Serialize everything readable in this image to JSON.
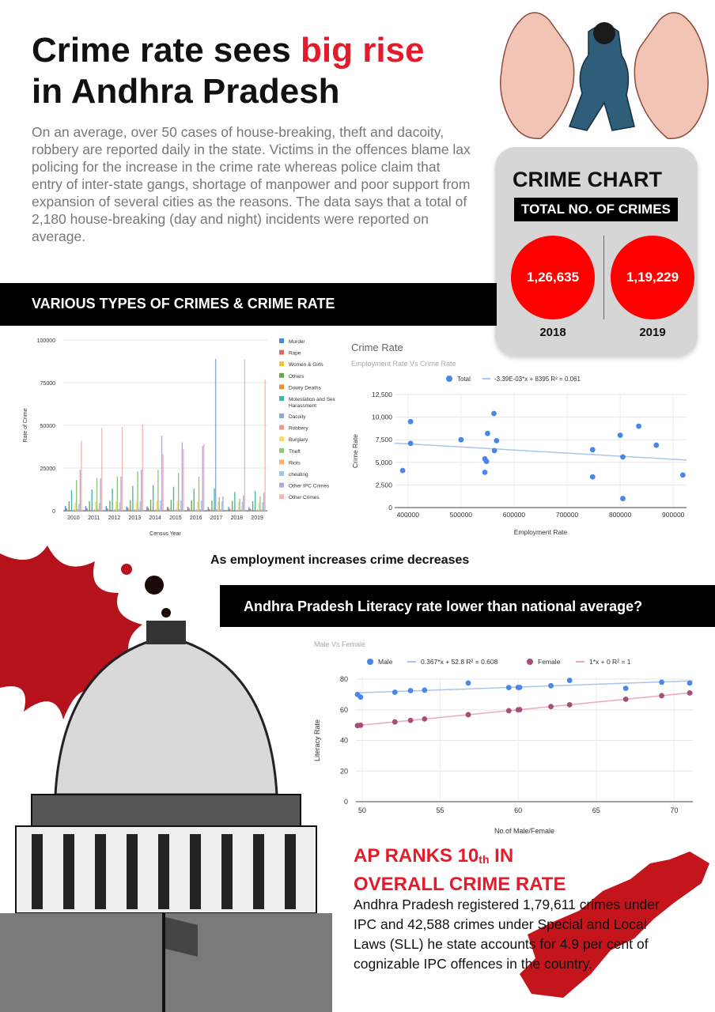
{
  "header": {
    "title_part1": "Crime rate sees ",
    "title_highlight": "big rise",
    "title_line2": "in Andhra Pradesh",
    "intro": "On an average, over 50 cases of house-breaking, theft and dacoity, robbery are reported daily in the state. Victims in the offences blame lax policing for the increase in the crime rate whereas police claim that entry of inter-state gangs, shortage of manpower and poor support from expansion of several cities as the reasons. The data says that a total of 2,180 house-breaking (day and night) incidents were reported on average."
  },
  "crime_chart": {
    "title": "CRIME CHART",
    "subtitle": "TOTAL NO. OF CRIMES",
    "value_2018": "1,26,635",
    "value_2019": "1,19,229",
    "year_2018": "2018",
    "year_2019": "2019"
  },
  "banners": {
    "crimes_banner": "VARIOUS TYPES OF CRIMES & CRIME RATE",
    "literacy_banner": "Andhra Pradesh Literacy rate lower than national average?"
  },
  "caption": "As employment increases crime decreases",
  "rank": {
    "title_line1_a": "AP RANKS 10",
    "title_sup": "th",
    "title_line1_b": " IN",
    "title_line2": "OVERALL CRIME RATE",
    "body": "Andhra Pradesh registered 1,79,611 crimes under IPC and 42,588 crimes under Special and Local Laws (SLL) he state accounts for 4.9 per cent of cognizable IPC offences in the country."
  },
  "colors": {
    "accent_red": "#e31b2b",
    "circle_red": "#ff0000",
    "card_gray": "#d6d6d6"
  },
  "chart_data": [
    {
      "type": "bar",
      "title": "",
      "xlabel": "Census Year",
      "ylabel": "Rate of Crime",
      "ylim": [
        0,
        100000
      ],
      "yticks": [
        0,
        25000,
        50000,
        75000,
        100000
      ],
      "ytick_labels": [
        "0",
        "25000",
        "50000",
        "75000",
        "100000"
      ],
      "categories": [
        "2010",
        "2011",
        "2012",
        "2013",
        "2014",
        "2015",
        "2016",
        "2017",
        "2018",
        "2019"
      ],
      "legend_position": "right",
      "series": [
        {
          "name": "Murder",
          "color": "#4a86e8",
          "values": [
            2800,
            2700,
            2700,
            2500,
            2500,
            2300,
            2300,
            2200,
            2200,
            2100
          ]
        },
        {
          "name": "Rape",
          "color": "#e06666",
          "values": [
            1400,
            1500,
            1500,
            1800,
            1800,
            1500,
            1600,
            1000,
            1100,
            1100
          ]
        },
        {
          "name": "Women & Girls",
          "color": "#f1c232",
          "values": [
            600,
            650,
            700,
            900,
            900,
            700,
            700,
            600,
            600,
            700
          ]
        },
        {
          "name": "Others",
          "color": "#6aa84f",
          "values": [
            5500,
            5600,
            5800,
            6200,
            6500,
            6300,
            6100,
            6000,
            5700,
            5500
          ]
        },
        {
          "name": "Dowry Deaths",
          "color": "#e69138",
          "values": [
            500,
            500,
            500,
            500,
            500,
            400,
            400,
            350,
            350,
            300
          ]
        },
        {
          "name": "Molestation and Sex Harassment",
          "color": "#45b5aa",
          "values": [
            12000,
            12500,
            13000,
            14500,
            15000,
            14000,
            13000,
            13000,
            11000,
            11500
          ]
        },
        {
          "name": "Dacoity",
          "color": "#8eaadb",
          "values": [
            300,
            300,
            300,
            350,
            350,
            300,
            300,
            89000,
            300,
            300
          ]
        },
        {
          "name": "Robbery",
          "color": "#ea9999",
          "values": [
            900,
            900,
            900,
            950,
            900,
            850,
            800,
            750,
            700,
            700
          ]
        },
        {
          "name": "Burglary",
          "color": "#ffd966",
          "values": [
            5000,
            5200,
            5300,
            5800,
            6000,
            5700,
            5500,
            5300,
            5000,
            4800
          ]
        },
        {
          "name": "Theft",
          "color": "#93c47d",
          "values": [
            18000,
            19000,
            20000,
            23000,
            24000,
            22000,
            20000,
            8000,
            7000,
            8500
          ]
        },
        {
          "name": "Riots",
          "color": "#f6b26b",
          "values": [
            1200,
            1300,
            1200,
            1200,
            1100,
            1000,
            900,
            900,
            800,
            800
          ]
        },
        {
          "name": "cheating",
          "color": "#9fc5e8",
          "values": [
            4000,
            4500,
            5000,
            5500,
            6000,
            6000,
            5800,
            5500,
            5200,
            5000
          ]
        },
        {
          "name": "Other IPC Crimes",
          "color": "#b4a7d6",
          "values": [
            24000,
            19000,
            20000,
            24000,
            44000,
            40000,
            38000,
            8500,
            9000,
            10500
          ]
        },
        {
          "name": "Other Crimes",
          "color": "#f4b6b6",
          "values": [
            41000,
            48500,
            49000,
            50500,
            33000,
            36000,
            39000,
            0,
            88500,
            77000
          ]
        }
      ]
    },
    {
      "type": "scatter",
      "title": "Crime Rate",
      "subtitle": "Employment Rate Vs Crime Rate",
      "xlabel": "Employment Rate",
      "ylabel": "Crime Rate",
      "xlim": [
        375000,
        925000
      ],
      "ylim": [
        0,
        12500
      ],
      "xticks": [
        400000,
        500000,
        600000,
        700000,
        800000,
        900000
      ],
      "xtick_labels": [
        "400000",
        "500000",
        "600000",
        "700000",
        "800000",
        "900000"
      ],
      "yticks": [
        0,
        2500,
        5000,
        7500,
        10000,
        12500
      ],
      "ytick_labels": [
        "0",
        "2,500",
        "5,000",
        "7,500",
        "10,000",
        "12,500"
      ],
      "legend": [
        "Total",
        "-3.39E-03*x + 8395 R² = 0.061"
      ],
      "series": [
        {
          "name": "Total",
          "color": "#4a86e8",
          "points": [
            [
              390000,
              4100
            ],
            [
              405000,
              9500
            ],
            [
              405000,
              7100
            ],
            [
              500000,
              7500
            ],
            [
              545000,
              3900
            ],
            [
              545000,
              5400
            ],
            [
              548000,
              5100
            ],
            [
              550000,
              8200
            ],
            [
              562000,
              10400
            ],
            [
              563000,
              6300
            ],
            [
              567000,
              7400
            ],
            [
              748000,
              6400
            ],
            [
              748000,
              3400
            ],
            [
              800000,
              8000
            ],
            [
              805000,
              5600
            ],
            [
              805000,
              1000
            ],
            [
              835000,
              9000
            ],
            [
              868000,
              6900
            ],
            [
              918000,
              3600
            ]
          ]
        }
      ],
      "trendline": {
        "slope": -0.00339,
        "intercept": 8395,
        "color": "#a9c5ee"
      }
    },
    {
      "type": "scatter",
      "title": "",
      "subtitle": "Male Vs Female",
      "xlabel": "No.of Male/Female",
      "ylabel": "Literacy Rate",
      "xlim": [
        49.6,
        71.2
      ],
      "ylim": [
        0,
        80
      ],
      "xticks": [
        50,
        55,
        60,
        65,
        70
      ],
      "yticks": [
        0,
        20,
        40,
        60,
        80
      ],
      "legend": [
        "Male",
        "0.367*x + 52.8 R² = 0.608",
        "Female",
        "1*x + 0 R² = 1"
      ],
      "series": [
        {
          "name": "Male",
          "color": "#4a86e8",
          "points": [
            [
              49.7,
              70
            ],
            [
              49.9,
              68.3
            ],
            [
              52.1,
              71.5
            ],
            [
              53.1,
              72.5
            ],
            [
              54.0,
              72.8
            ],
            [
              56.8,
              77.5
            ],
            [
              59.4,
              74.5
            ],
            [
              60.0,
              74.6
            ],
            [
              60.1,
              74.6
            ],
            [
              62.1,
              75.7
            ],
            [
              63.3,
              79.2
            ],
            [
              66.9,
              74.0
            ],
            [
              69.2,
              78.0
            ],
            [
              71.0,
              77.5
            ]
          ]
        },
        {
          "name": "Female",
          "color": "#a64d79",
          "points": [
            [
              49.7,
              49.7
            ],
            [
              49.9,
              49.9
            ],
            [
              52.1,
              52.1
            ],
            [
              53.1,
              53.1
            ],
            [
              54.0,
              54.0
            ],
            [
              56.8,
              56.8
            ],
            [
              59.4,
              59.4
            ],
            [
              60.0,
              60.0
            ],
            [
              60.1,
              60.1
            ],
            [
              62.1,
              62.1
            ],
            [
              63.3,
              63.3
            ],
            [
              66.9,
              66.9
            ],
            [
              69.2,
              69.2
            ],
            [
              71.0,
              71.0
            ]
          ]
        }
      ],
      "trendlines": [
        {
          "series": "Male",
          "slope": 0.367,
          "intercept": 52.8,
          "color": "#a9c5ee"
        },
        {
          "series": "Female",
          "slope": 1,
          "intercept": 0,
          "color": "#e9a9c0"
        }
      ]
    }
  ]
}
